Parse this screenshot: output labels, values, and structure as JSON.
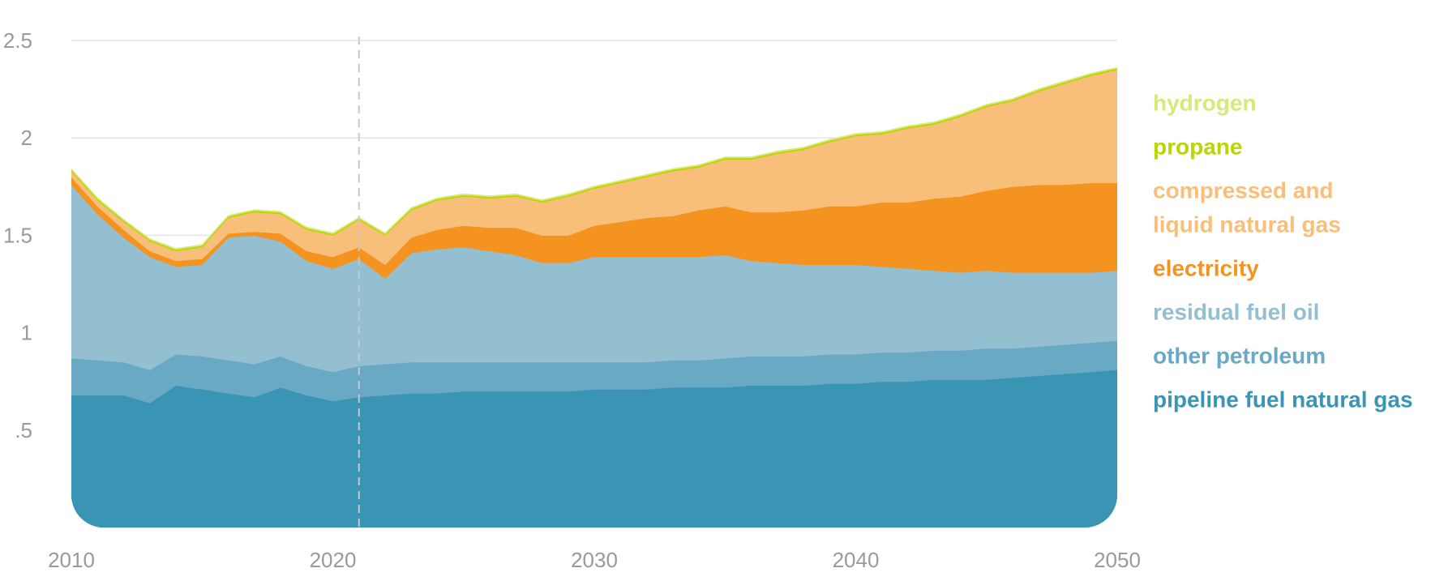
{
  "chart_data": {
    "type": "area",
    "stacked": true,
    "x": [
      2010,
      2011,
      2012,
      2013,
      2014,
      2015,
      2016,
      2017,
      2018,
      2019,
      2020,
      2021,
      2022,
      2023,
      2024,
      2025,
      2026,
      2027,
      2028,
      2029,
      2030,
      2031,
      2032,
      2033,
      2034,
      2035,
      2036,
      2037,
      2038,
      2039,
      2040,
      2041,
      2042,
      2043,
      2044,
      2045,
      2046,
      2047,
      2048,
      2049,
      2050
    ],
    "y_range": [
      0,
      2.5
    ],
    "y_ticks": [
      0.5,
      1,
      1.5,
      2,
      2.5
    ],
    "y_tick_labels": [
      ".5",
      "1",
      "1.5",
      "2",
      "2.5"
    ],
    "x_ticks": [
      2010,
      2020,
      2030,
      2040,
      2050
    ],
    "x_tick_labels": [
      "2010",
      "2020",
      "2030",
      "2040",
      "2050"
    ],
    "reference_line_x": 2021,
    "grid": "horizontal",
    "legend_position": "right",
    "series": [
      {
        "name": "pipeline fuel natural gas",
        "color": "#3a95b5",
        "values": [
          0.68,
          0.68,
          0.68,
          0.64,
          0.73,
          0.71,
          0.69,
          0.67,
          0.72,
          0.68,
          0.65,
          0.67,
          0.68,
          0.69,
          0.69,
          0.7,
          0.7,
          0.7,
          0.7,
          0.7,
          0.71,
          0.71,
          0.71,
          0.72,
          0.72,
          0.72,
          0.73,
          0.73,
          0.73,
          0.74,
          0.74,
          0.75,
          0.75,
          0.76,
          0.76,
          0.76,
          0.77,
          0.78,
          0.79,
          0.8,
          0.81
        ]
      },
      {
        "name": "other petroleum",
        "color": "#6aa9c4",
        "values": [
          0.19,
          0.18,
          0.17,
          0.17,
          0.16,
          0.17,
          0.17,
          0.17,
          0.16,
          0.15,
          0.15,
          0.16,
          0.16,
          0.16,
          0.16,
          0.15,
          0.15,
          0.15,
          0.15,
          0.15,
          0.14,
          0.14,
          0.14,
          0.14,
          0.14,
          0.15,
          0.15,
          0.15,
          0.15,
          0.15,
          0.15,
          0.15,
          0.15,
          0.15,
          0.15,
          0.16,
          0.15,
          0.15,
          0.15,
          0.15,
          0.15
        ]
      },
      {
        "name": "residual fuel oil",
        "color": "#94bfd1",
        "values": [
          0.89,
          0.75,
          0.64,
          0.58,
          0.45,
          0.47,
          0.63,
          0.66,
          0.59,
          0.54,
          0.53,
          0.55,
          0.44,
          0.56,
          0.58,
          0.59,
          0.57,
          0.55,
          0.51,
          0.51,
          0.54,
          0.54,
          0.54,
          0.53,
          0.53,
          0.53,
          0.49,
          0.48,
          0.47,
          0.46,
          0.46,
          0.44,
          0.43,
          0.41,
          0.4,
          0.4,
          0.39,
          0.38,
          0.37,
          0.36,
          0.36
        ]
      },
      {
        "name": "electricity",
        "color": "#f4931f",
        "values": [
          0.04,
          0.04,
          0.04,
          0.03,
          0.03,
          0.03,
          0.02,
          0.02,
          0.04,
          0.05,
          0.06,
          0.06,
          0.07,
          0.08,
          0.1,
          0.11,
          0.12,
          0.14,
          0.14,
          0.14,
          0.16,
          0.18,
          0.2,
          0.21,
          0.24,
          0.25,
          0.25,
          0.26,
          0.28,
          0.3,
          0.3,
          0.33,
          0.34,
          0.37,
          0.39,
          0.41,
          0.44,
          0.45,
          0.45,
          0.46,
          0.45
        ]
      },
      {
        "name": "compressed and liquid natural gas",
        "color": "#f8bf7a",
        "values": [
          0.03,
          0.03,
          0.04,
          0.05,
          0.05,
          0.06,
          0.08,
          0.1,
          0.1,
          0.11,
          0.11,
          0.14,
          0.15,
          0.14,
          0.15,
          0.15,
          0.15,
          0.16,
          0.17,
          0.2,
          0.19,
          0.2,
          0.21,
          0.23,
          0.22,
          0.24,
          0.27,
          0.3,
          0.31,
          0.33,
          0.36,
          0.35,
          0.38,
          0.38,
          0.41,
          0.43,
          0.44,
          0.48,
          0.52,
          0.55,
          0.58
        ]
      },
      {
        "name": "propane",
        "color": "#b9d600",
        "values": [
          0.008,
          0.008,
          0.008,
          0.008,
          0.008,
          0.008,
          0.008,
          0.008,
          0.008,
          0.008,
          0.008,
          0.008,
          0.008,
          0.008,
          0.008,
          0.008,
          0.008,
          0.008,
          0.008,
          0.008,
          0.008,
          0.008,
          0.008,
          0.008,
          0.008,
          0.008,
          0.008,
          0.008,
          0.008,
          0.008,
          0.008,
          0.008,
          0.008,
          0.008,
          0.008,
          0.008,
          0.008,
          0.008,
          0.008,
          0.008,
          0.008
        ]
      },
      {
        "name": "hydrogen",
        "color": "#d8e87a",
        "values": [
          0.004,
          0.004,
          0.004,
          0.004,
          0.004,
          0.004,
          0.004,
          0.004,
          0.004,
          0.004,
          0.004,
          0.004,
          0.004,
          0.004,
          0.004,
          0.004,
          0.004,
          0.004,
          0.004,
          0.004,
          0.004,
          0.004,
          0.004,
          0.004,
          0.004,
          0.004,
          0.004,
          0.004,
          0.004,
          0.004,
          0.004,
          0.004,
          0.004,
          0.004,
          0.004,
          0.004,
          0.004,
          0.004,
          0.004,
          0.004,
          0.004
        ]
      }
    ],
    "legend_labels": [
      {
        "series": "hydrogen",
        "lines": [
          "hydrogen"
        ],
        "color": "#d8e87a"
      },
      {
        "series": "propane",
        "lines": [
          "propane"
        ],
        "color": "#b9d600"
      },
      {
        "series": "compressed and liquid natural gas",
        "lines": [
          "compressed and",
          "liquid natural gas"
        ],
        "color": "#f8bf7a"
      },
      {
        "series": "electricity",
        "lines": [
          "electricity"
        ],
        "color": "#f4931f"
      },
      {
        "series": "residual fuel oil",
        "lines": [
          "residual fuel oil"
        ],
        "color": "#94bfd1"
      },
      {
        "series": "other petroleum",
        "lines": [
          "other petroleum"
        ],
        "color": "#6aa9c4"
      },
      {
        "series": "pipeline fuel natural gas",
        "lines": [
          "pipeline fuel natural gas"
        ],
        "color": "#3a95b5"
      }
    ]
  }
}
